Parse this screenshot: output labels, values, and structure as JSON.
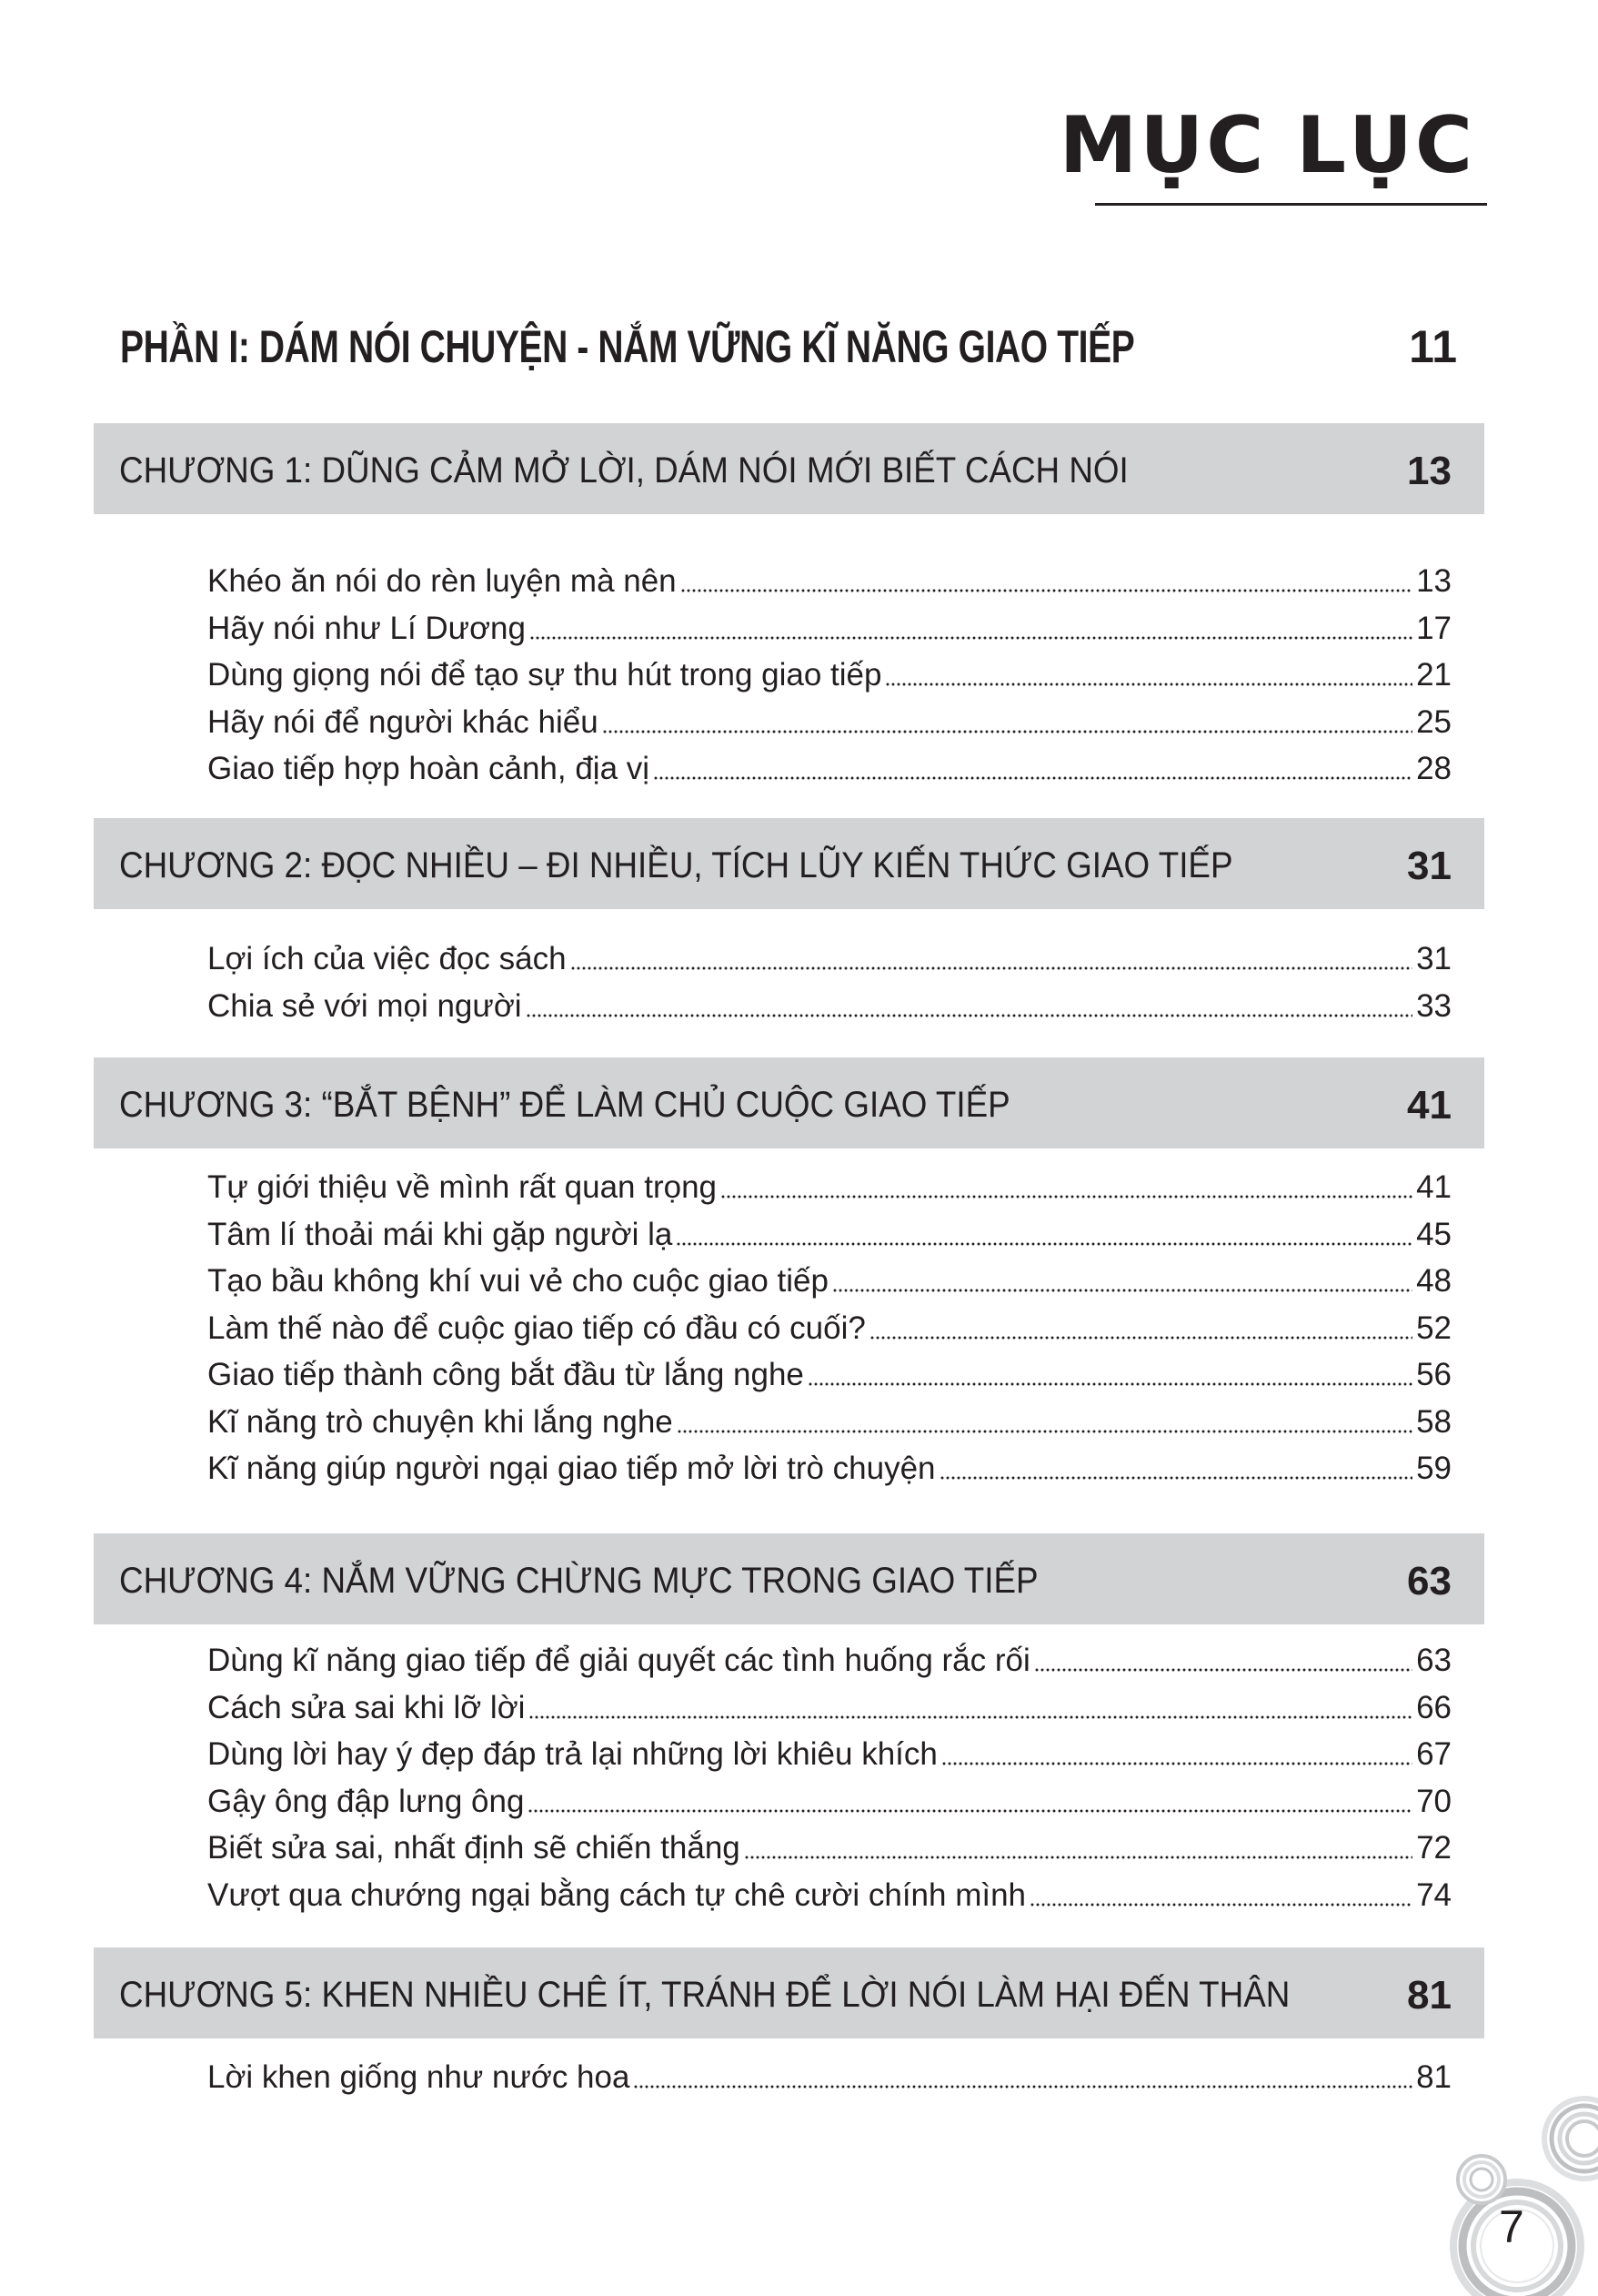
{
  "title": "MỤC LỤC",
  "part": {
    "label": "PHẦN I:  DÁM NÓI CHUYỆN - NẮM VỮNG KĨ NĂNG GIAO TIẾP",
    "page": "11"
  },
  "chapters": [
    {
      "label": "CHƯƠNG 1: DŨNG CẢM MỞ LỜI, DÁM NÓI MỚI BIẾT CÁCH NÓI",
      "page": "13",
      "entries": [
        {
          "title": "Khéo ăn nói do rèn luyện mà nên",
          "page": "13"
        },
        {
          "title": "Hãy nói như Lí Dương",
          "page": "17"
        },
        {
          "title": "Dùng giọng nói để tạo sự thu hút trong giao tiếp",
          "page": "21"
        },
        {
          "title": "Hãy nói để người khác hiểu",
          "page": "25"
        },
        {
          "title": "Giao tiếp hợp hoàn cảnh, địa vị",
          "page": "28"
        }
      ]
    },
    {
      "label": "CHƯƠNG 2: ĐỌC NHIỀU – ĐI NHIỀU, TÍCH LŨY KIẾN THỨC GIAO TIẾP",
      "page": "31",
      "entries": [
        {
          "title": "Lợi ích của việc đọc sách",
          "page": "31"
        },
        {
          "title": "Chia sẻ với mọi người",
          "page": "33"
        }
      ]
    },
    {
      "label": "CHƯƠNG 3: “BẮT BỆNH” ĐỂ LÀM CHỦ CUỘC GIAO TIẾP",
      "page": "41",
      "entries": [
        {
          "title": "Tự giới thiệu về mình rất quan trọng",
          "page": "41"
        },
        {
          "title": "Tâm lí thoải mái khi gặp người lạ",
          "page": "45"
        },
        {
          "title": "Tạo bầu không khí vui vẻ cho cuộc giao tiếp",
          "page": "48"
        },
        {
          "title": "Làm thế nào để cuộc giao tiếp có đầu có cuối?",
          "page": "52"
        },
        {
          "title": "Giao tiếp thành công bắt đầu từ lắng nghe",
          "page": "56"
        },
        {
          "title": "Kĩ năng trò chuyện khi lắng nghe",
          "page": "58"
        },
        {
          "title": "Kĩ năng giúp người ngại giao tiếp mở lời trò chuyện",
          "page": "59"
        }
      ]
    },
    {
      "label": "CHƯƠNG 4: NẮM VỮNG CHỪNG MỰC TRONG GIAO TIẾP",
      "page": "63",
      "entries": [
        {
          "title": "Dùng kĩ năng giao tiếp để giải quyết các tình huống rắc rối",
          "page": "63"
        },
        {
          "title": "Cách sửa sai khi lỡ lời",
          "page": "66"
        },
        {
          "title": "Dùng lời hay ý đẹp đáp trả lại những lời khiêu khích",
          "page": "67"
        },
        {
          "title": "Gậy ông đập lưng ông",
          "page": "70"
        },
        {
          "title": "Biết sửa sai, nhất định sẽ chiến thắng",
          "page": "72"
        },
        {
          "title": "Vượt qua chướng ngại bằng cách tự chê cười chính mình",
          "page": "74"
        }
      ]
    },
    {
      "label": "CHƯƠNG 5: KHEN NHIỀU CHÊ ÍT, TRÁNH ĐỂ LỜI NÓI LÀM HẠI ĐẾN THÂN",
      "page": "81",
      "entries": [
        {
          "title": "Lời khen giống như nước hoa",
          "page": "81"
        }
      ]
    }
  ],
  "page_number": "7",
  "colors": {
    "band": "#d1d3d4",
    "text": "#231f20",
    "decor": "#c8c9cb"
  }
}
